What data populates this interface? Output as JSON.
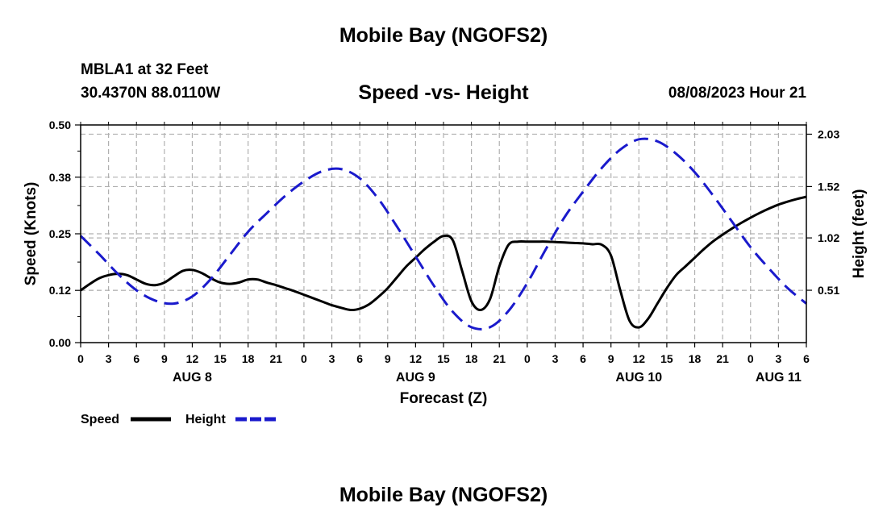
{
  "page": {
    "title": "Mobile Bay (NGOFS2)",
    "footer_title": "Mobile Bay (NGOFS2)",
    "station": "MBLA1 at 32 Feet",
    "coordinates": "30.4370N  88.0110W",
    "subtitle": "Speed -vs- Height",
    "datetime": "08/08/2023 Hour 21"
  },
  "colors": {
    "speed": "#000000",
    "height": "#1a1acc",
    "grid": "#b0b0b0"
  },
  "chart_data": {
    "type": "line",
    "title": "Speed -vs- Height",
    "xlabel": "Forecast (Z)",
    "ylabel": "Speed (Knots)",
    "ylabel_right": "Height (feet)",
    "xlim": [
      0,
      78
    ],
    "ylim": [
      0,
      0.5
    ],
    "ylim_right": [
      0,
      2.12
    ],
    "x_ticks": [
      0,
      3,
      6,
      9,
      12,
      15,
      18,
      21,
      24,
      27,
      30,
      33,
      36,
      39,
      42,
      45,
      48,
      51,
      54,
      57,
      60,
      63,
      66,
      69,
      72,
      75,
      78
    ],
    "x_tick_labels": [
      "0",
      "3",
      "6",
      "9",
      "12",
      "15",
      "18",
      "21",
      "0",
      "3",
      "6",
      "9",
      "12",
      "15",
      "18",
      "21",
      "0",
      "3",
      "6",
      "9",
      "12",
      "15",
      "18",
      "21",
      "0",
      "3",
      "6"
    ],
    "day_labels": [
      {
        "x": 12,
        "label": "AUG 8"
      },
      {
        "x": 36,
        "label": "AUG 9"
      },
      {
        "x": 60,
        "label": "AUG 10"
      },
      {
        "x": 75,
        "label": "AUG 11"
      }
    ],
    "y_ticks": [
      0.0,
      0.12,
      0.25,
      0.38,
      0.5
    ],
    "y_tick_labels": [
      "0.00",
      "0.12",
      "0.25",
      "0.38",
      "0.50"
    ],
    "y2_ticks": [
      0.51,
      1.02,
      1.52,
      2.03
    ],
    "y2_tick_labels": [
      "0.51",
      "1.02",
      "1.52",
      "2.03"
    ],
    "grid": true,
    "legend": [
      {
        "name": "Speed",
        "style": "solid"
      },
      {
        "name": "Height",
        "style": "dashed"
      }
    ],
    "series": [
      {
        "name": "Speed",
        "axis": "left",
        "style": "solid",
        "x": [
          0,
          1,
          2,
          3,
          4,
          5,
          6,
          7,
          8,
          9,
          10,
          11,
          12,
          13,
          14,
          15,
          16,
          17,
          18,
          19,
          20,
          21,
          22,
          23,
          24,
          25,
          26,
          27,
          28,
          29,
          30,
          31,
          32,
          33,
          34,
          35,
          36,
          37,
          38,
          39,
          40,
          41,
          42,
          43,
          44,
          45,
          46,
          47,
          48,
          49,
          50,
          51,
          52,
          53,
          54,
          55,
          56,
          57,
          58,
          59,
          60,
          61,
          62,
          63,
          64,
          65,
          66,
          67,
          68,
          69,
          70,
          71,
          72,
          73,
          74,
          75,
          76,
          77,
          78
        ],
        "values": [
          0.12,
          0.135,
          0.148,
          0.155,
          0.158,
          0.155,
          0.145,
          0.135,
          0.132,
          0.138,
          0.152,
          0.165,
          0.167,
          0.16,
          0.148,
          0.138,
          0.135,
          0.138,
          0.145,
          0.145,
          0.138,
          0.132,
          0.125,
          0.118,
          0.11,
          0.102,
          0.094,
          0.086,
          0.08,
          0.075,
          0.078,
          0.088,
          0.105,
          0.125,
          0.15,
          0.175,
          0.195,
          0.215,
          0.232,
          0.245,
          0.235,
          0.165,
          0.095,
          0.075,
          0.1,
          0.175,
          0.225,
          0.232,
          0.232,
          0.232,
          0.232,
          0.231,
          0.23,
          0.229,
          0.228,
          0.226,
          0.225,
          0.2,
          0.12,
          0.05,
          0.035,
          0.055,
          0.09,
          0.125,
          0.155,
          0.175,
          0.195,
          0.215,
          0.233,
          0.248,
          0.262,
          0.275,
          0.287,
          0.298,
          0.308,
          0.317,
          0.324,
          0.33,
          0.335
        ]
      },
      {
        "name": "Height",
        "axis": "right",
        "style": "dashed",
        "x": [
          0,
          2,
          4,
          6,
          8,
          10,
          12,
          14,
          16,
          18,
          20,
          22,
          24,
          26,
          28,
          30,
          32,
          34,
          36,
          38,
          40,
          42,
          44,
          46,
          48,
          50,
          52,
          54,
          56,
          58,
          60,
          62,
          64,
          66,
          68,
          70,
          72,
          74,
          76,
          78
        ],
        "values": [
          1.04,
          0.86,
          0.67,
          0.51,
          0.41,
          0.38,
          0.45,
          0.62,
          0.85,
          1.08,
          1.26,
          1.43,
          1.57,
          1.67,
          1.69,
          1.6,
          1.4,
          1.13,
          0.84,
          0.55,
          0.3,
          0.15,
          0.15,
          0.31,
          0.58,
          0.91,
          1.22,
          1.47,
          1.7,
          1.88,
          1.98,
          1.96,
          1.84,
          1.66,
          1.43,
          1.18,
          0.93,
          0.72,
          0.53,
          0.38
        ]
      }
    ]
  }
}
